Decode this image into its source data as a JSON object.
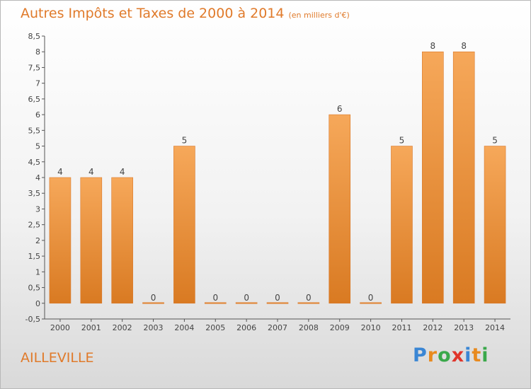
{
  "header": {
    "title": "Autres Impôts et Taxes de 2000 à 2014",
    "subtitle": "(en milliers d'€)"
  },
  "footer": {
    "commune": "AILLEVILLE",
    "logo_letters": [
      "P",
      "r",
      "o",
      "x",
      "i",
      "t",
      "i"
    ],
    "logo_colors": [
      "#3a86d4",
      "#e88a1e",
      "#3aa84a",
      "#e0342a",
      "#3a86d4",
      "#e88a1e",
      "#3aa84a"
    ]
  },
  "chart_data": {
    "type": "bar",
    "title": "Autres Impôts et Taxes de 2000 à 2014",
    "subtitle": "(en milliers d'€)",
    "categories": [
      "2000",
      "2001",
      "2002",
      "2003",
      "2004",
      "2005",
      "2006",
      "2007",
      "2008",
      "2009",
      "2010",
      "2011",
      "2012",
      "2013",
      "2014"
    ],
    "values": [
      4,
      4,
      4,
      0,
      5,
      0,
      0,
      0,
      0,
      6,
      0,
      5,
      8,
      8,
      5
    ],
    "data_labels": [
      "4",
      "4",
      "4",
      "0",
      "5",
      "0",
      "0",
      "0",
      "0",
      "6",
      "0",
      "5",
      "8",
      "8",
      "5"
    ],
    "yticks": [
      "-0,5",
      "0",
      "0,5",
      "1",
      "1,5",
      "2",
      "2,5",
      "3",
      "3,5",
      "4",
      "4,5",
      "5",
      "5,5",
      "6",
      "6,5",
      "7",
      "7,5",
      "8",
      "8,5"
    ],
    "ylim": [
      -0.5,
      8.5
    ],
    "xlabel": "",
    "ylabel": "",
    "grid": false,
    "colors": {
      "bar_light": "#f6a85a",
      "bar_dark": "#d97a22",
      "bar_edge": "#d9782a",
      "axis": "#555555",
      "label": "#444444"
    }
  }
}
